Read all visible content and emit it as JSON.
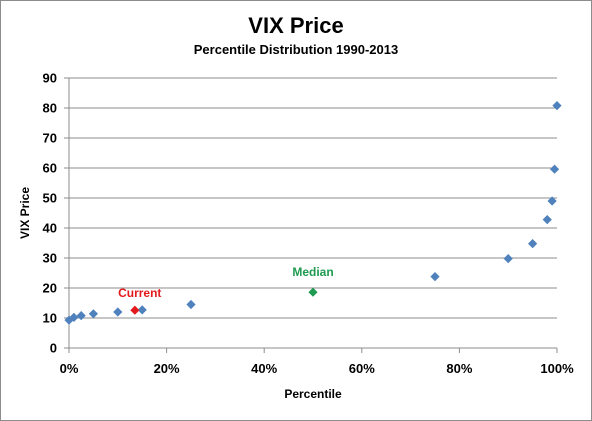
{
  "chart_data": {
    "type": "scatter",
    "title": "VIX Price",
    "subtitle": "Percentile Distribution 1990-2013",
    "xlabel": "Percentile",
    "ylabel": "VIX Price",
    "xlim": [
      0,
      1
    ],
    "ylim": [
      0,
      90
    ],
    "x_ticks": [
      0,
      0.2,
      0.4,
      0.6,
      0.8,
      1.0
    ],
    "x_tick_labels": [
      "0%",
      "20%",
      "40%",
      "60%",
      "80%",
      "100%"
    ],
    "y_ticks": [
      0,
      10,
      20,
      30,
      40,
      50,
      60,
      70,
      80,
      90
    ],
    "y_tick_labels": [
      "0",
      "10",
      "20",
      "30",
      "40",
      "50",
      "60",
      "70",
      "80",
      "90"
    ],
    "grid": "horizontal",
    "series": [
      {
        "color": "#4f81bd",
        "points": [
          {
            "x": 0.0,
            "y": 9.3
          },
          {
            "x": 0.01,
            "y": 10.2
          },
          {
            "x": 0.025,
            "y": 10.8
          },
          {
            "x": 0.05,
            "y": 11.4
          },
          {
            "x": 0.1,
            "y": 12.0
          },
          {
            "x": 0.15,
            "y": 12.7
          },
          {
            "x": 0.25,
            "y": 14.5
          },
          {
            "x": 0.75,
            "y": 23.8
          },
          {
            "x": 0.9,
            "y": 29.8
          },
          {
            "x": 0.95,
            "y": 34.8
          },
          {
            "x": 0.98,
            "y": 42.8
          },
          {
            "x": 0.99,
            "y": 49.0
          },
          {
            "x": 0.995,
            "y": 59.6
          },
          {
            "x": 1.0,
            "y": 80.8
          }
        ]
      },
      {
        "name": "Median",
        "color": "#1e9b50",
        "points": [
          {
            "x": 0.5,
            "y": 18.6
          }
        ]
      },
      {
        "name": "Current",
        "color": "#e31a1c",
        "points": [
          {
            "x": 0.135,
            "y": 12.6
          }
        ]
      }
    ],
    "annotations": [
      {
        "text": "Current",
        "color": "#e31a1c",
        "x": 0.145,
        "y": 17.0
      },
      {
        "text": "Median",
        "color": "#1e9b50",
        "x": 0.5,
        "y": 24.0
      }
    ]
  }
}
